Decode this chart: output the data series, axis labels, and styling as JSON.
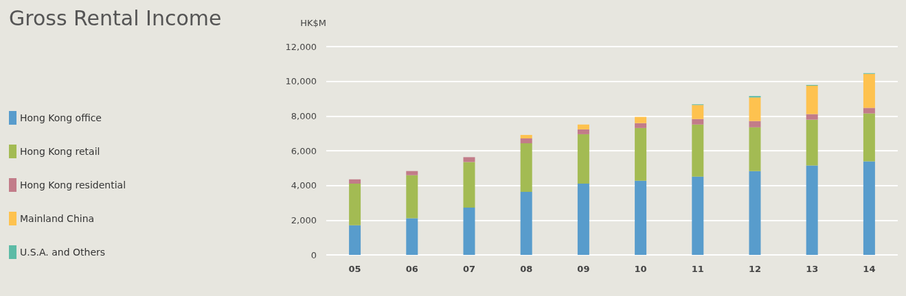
{
  "chart_data": {
    "type": "bar",
    "title": "Gross Rental Income",
    "ylabel": "HK$M",
    "stacked": true,
    "grid": "y",
    "legend": "left",
    "categories": [
      "05",
      "06",
      "07",
      "08",
      "09",
      "10",
      "11",
      "12",
      "13",
      "14"
    ],
    "ylim": [
      0,
      12000
    ],
    "yticks": [
      0,
      {
        "value": 2000,
        "label": "2,000"
      },
      {
        "value": 4000,
        "label": "4,000"
      },
      {
        "value": 6000,
        "label": "6,000"
      },
      {
        "value": 8000,
        "label": "8,000"
      },
      {
        "value": 10000,
        "label": "10,000"
      },
      {
        "value": 12000,
        "label": "12,000"
      }
    ],
    "series": [
      {
        "name": "Hong Kong office",
        "color": "#589ccc",
        "values": [
          1710,
          2110,
          2720,
          3630,
          4110,
          4270,
          4510,
          4830,
          5150,
          5390
        ]
      },
      {
        "name": "Hong Kong retail",
        "color": "#a3bb53",
        "values": [
          2400,
          2480,
          2630,
          2800,
          2840,
          3040,
          3000,
          2520,
          2640,
          2760
        ]
      },
      {
        "name": "Hong Kong residential",
        "color": "#c27c89",
        "values": [
          240,
          240,
          280,
          280,
          280,
          280,
          320,
          360,
          320,
          320
        ]
      },
      {
        "name": "Mainland China",
        "color": "#fec24f",
        "values": [
          null,
          null,
          null,
          200,
          280,
          360,
          800,
          1360,
          1640,
          1960
        ]
      },
      {
        "name": "U.S.A. and Others",
        "color": "#5cbba6",
        "values": [
          null,
          null,
          null,
          null,
          null,
          null,
          40,
          80,
          40,
          40
        ]
      }
    ]
  }
}
